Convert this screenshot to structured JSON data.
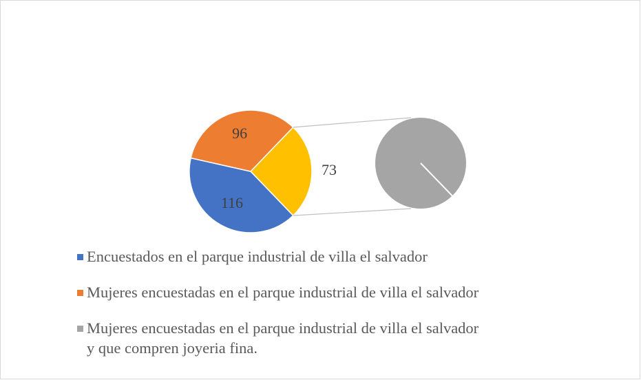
{
  "chart_data": {
    "type": "pie_of_pie",
    "categories": [
      "Encuestados en el parque industrial de villa el salvador",
      "Mujeres encuestadas en el parque industrial de villa el salvador",
      "Mujeres encuestadas en el parque industrial de villa el salvador y que compren joyeria fina."
    ],
    "values": [
      116,
      96,
      73
    ],
    "colors": [
      "#4472c4",
      "#ed7d31",
      "#a5a5a5"
    ],
    "secondary_count": 1,
    "other_color": "#ffc000",
    "legend": "bottom"
  }
}
